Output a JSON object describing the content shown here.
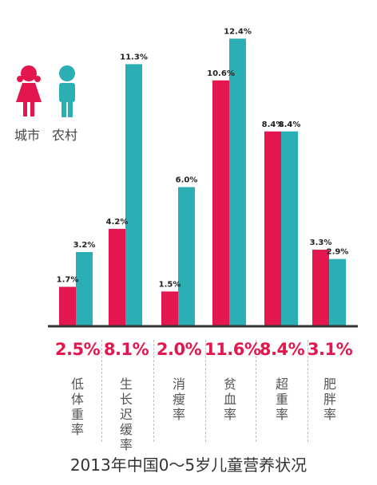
{
  "chart_data": {
    "type": "bar",
    "title": "2013年中国0～5岁儿童营养状况",
    "categories": [
      "低体重率",
      "生长迟缓率",
      "消瘦率",
      "贫血率",
      "超重率",
      "肥胖率"
    ],
    "series": [
      {
        "name": "城市",
        "color": "#e3174d",
        "values": [
          1.7,
          4.2,
          1.5,
          10.6,
          8.4,
          3.3
        ],
        "labels": [
          "1.7%",
          "4.2%",
          "1.5%",
          "10.6%",
          "8.4%",
          "3.3%"
        ]
      },
      {
        "name": "农村",
        "color": "#2bafb4",
        "values": [
          3.2,
          11.3,
          6.0,
          12.4,
          8.4,
          2.9
        ],
        "labels": [
          "3.2%",
          "11.3%",
          "6.0%",
          "12.4%",
          "8.4%",
          "2.9%"
        ]
      }
    ],
    "totals": [
      "2.5%",
      "8.1%",
      "2.0%",
      "11.6%",
      "8.4%",
      "3.1%"
    ],
    "ylim": [
      0,
      13
    ],
    "legend_position": "top-left",
    "grid": false
  }
}
